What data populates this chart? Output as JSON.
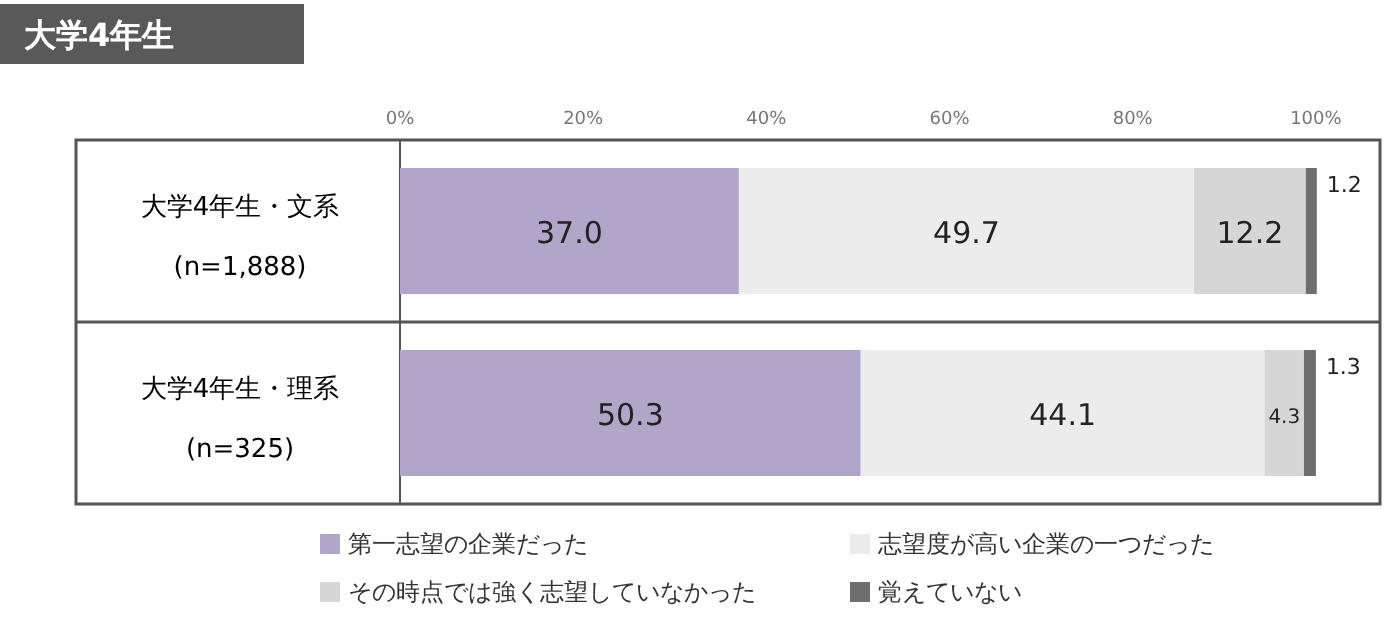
{
  "chart_data": {
    "type": "bar",
    "orientation": "horizontal",
    "stacked": true,
    "title": "大学4年生",
    "categories": [
      "大学4年生・文系\n(n=1,888)",
      "大学4年生・理系\n(n=325)"
    ],
    "series": [
      {
        "name": "第一志望の企業だった",
        "color": "#b1a5c9",
        "values": [
          37.0,
          50.3
        ],
        "value_labels": [
          "37.0",
          "50.3"
        ]
      },
      {
        "name": "志望度が高い企業の一つだった",
        "color": "#ececec",
        "values": [
          49.7,
          44.1
        ],
        "value_labels": [
          "49.7",
          "44.1"
        ]
      },
      {
        "name": "その時点では強く志望していなかった",
        "color": "#d6d6d6",
        "values": [
          12.2,
          4.3
        ],
        "value_labels": [
          "12.2",
          "4.3"
        ]
      },
      {
        "name": "覚えていない",
        "color": "#6e6e6e",
        "values": [
          1.2,
          1.3
        ],
        "value_labels": [
          "1.2",
          "1.3"
        ]
      }
    ],
    "xlim": [
      0,
      107
    ],
    "xticks": [
      {
        "value": 0,
        "label": "0%"
      },
      {
        "value": 20,
        "label": "20%"
      },
      {
        "value": 40,
        "label": "40%"
      },
      {
        "value": 60,
        "label": "60%"
      },
      {
        "value": 80,
        "label": "80%"
      },
      {
        "value": 100,
        "label": "100%"
      }
    ],
    "grid": false,
    "legend": "bottom"
  }
}
